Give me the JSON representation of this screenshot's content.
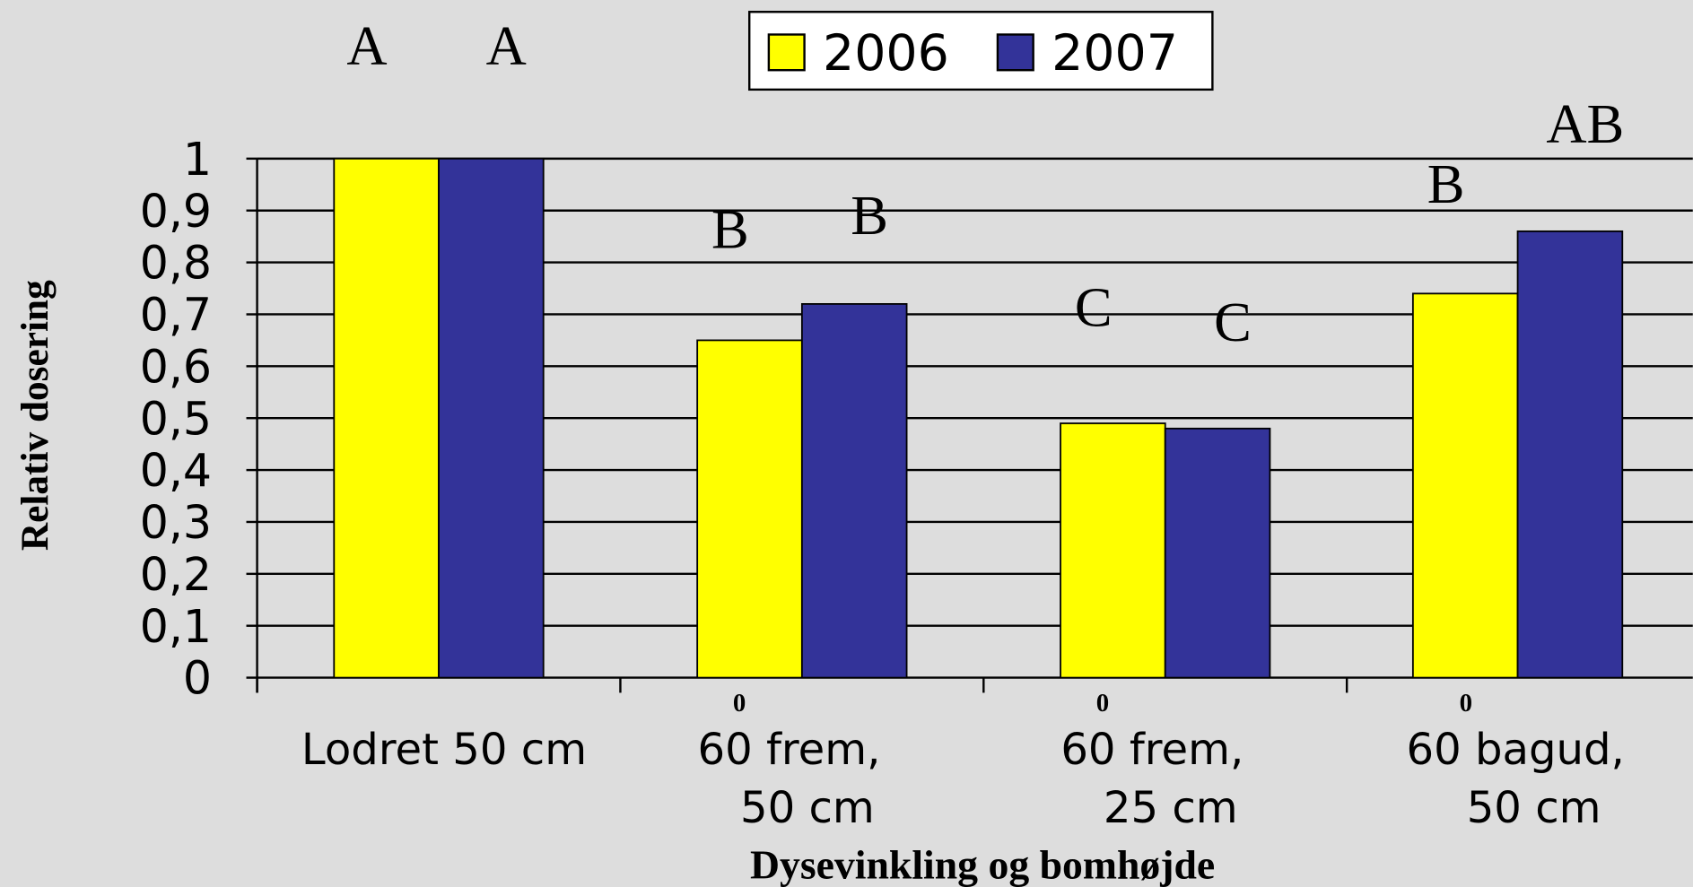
{
  "chart_data": {
    "type": "bar",
    "y_label": "Relativ dosering",
    "x_label": "Dysevinkling og bomhøjde",
    "categories": [
      [
        "Lodret 50 cm"
      ],
      [
        "60  frem,",
        "50 cm"
      ],
      [
        "60  frem,",
        "25 cm"
      ],
      [
        "60  bagud,",
        "50 cm"
      ]
    ],
    "category_superscripts": [
      null,
      "0",
      "0",
      "0"
    ],
    "series": [
      {
        "name": "2006",
        "color": "#ffff00",
        "values": [
          1,
          0.65,
          0.49,
          0.74
        ],
        "letters": [
          "A",
          "B",
          "C",
          "B"
        ]
      },
      {
        "name": "2007",
        "color": "#333399",
        "values": [
          1,
          0.72,
          0.48,
          0.86
        ],
        "letters": [
          "A",
          "B",
          "C",
          "AB"
        ]
      }
    ],
    "ylim": [
      0,
      1
    ],
    "yticks": [
      0,
      {
        "value": 0.1,
        "label": "0,1"
      },
      {
        "value": 0.2,
        "label": "0,2"
      },
      {
        "value": 0.3,
        "label": "0,3"
      },
      {
        "value": 0.4,
        "label": "0,4"
      },
      {
        "value": 0.5,
        "label": "0,5"
      },
      {
        "value": 0.6,
        "label": "0,6"
      },
      {
        "value": 0.7,
        "label": "0,7"
      },
      {
        "value": 0.8,
        "label": "0,8"
      },
      {
        "value": 0.9,
        "label": "0,9"
      },
      1
    ],
    "grid": true,
    "legend": "top"
  }
}
